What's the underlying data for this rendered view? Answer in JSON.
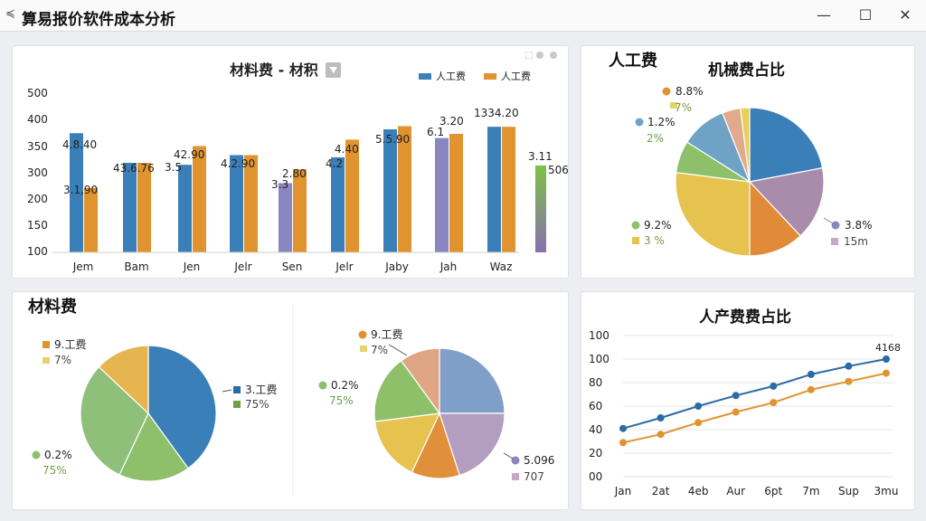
{
  "window": {
    "title": "算易报价软件成本分析",
    "menu_icon": "menu-icon",
    "minimize_icon": "minimize-icon",
    "maximize_icon": "maximize-icon",
    "close_icon": "close-icon"
  },
  "colors": {
    "blue": "#3a7fb8",
    "orange": "#e0932f",
    "purple": "#8a86c0",
    "green": "#8ebf6b",
    "pink": "#a98cab",
    "tan": "#e0a583",
    "yellow": "#e6c24e",
    "dkblue": "#2c6aa6",
    "gridline": "#e6e6e6"
  },
  "bar_panel": {
    "title": "材料费 - 材积",
    "filter_icon": "filter-icon",
    "tool_icons": [
      "select-icon",
      "gear-icon",
      "close-icon"
    ],
    "side_labels": [
      "3.11",
      "506"
    ]
  },
  "labor_panel": {
    "heading": "人工费",
    "pie_title": "机械费占比",
    "labels": [
      {
        "value": "8.8%",
        "sub": "7%"
      },
      {
        "value": "1.2%",
        "sub": "2%"
      },
      {
        "value": "9.2%",
        "sub": "3 %"
      },
      {
        "value": "3.8%",
        "sub": "15m"
      }
    ]
  },
  "material_panel": {
    "heading": "材料费",
    "left_labels": [
      {
        "value": "9.工费",
        "sub": "7%"
      },
      {
        "value": "3.工费",
        "sub": "75%"
      },
      {
        "value": "0.2%",
        "sub": "75%"
      }
    ],
    "right_labels": [
      {
        "value": "9.工费",
        "sub": "7%"
      },
      {
        "value": "0.2%",
        "sub": "75%"
      },
      {
        "value": "5.096",
        "sub": "707"
      }
    ]
  },
  "line_panel": {
    "title": "人产费费占比",
    "end_label": "4168"
  },
  "chart_data": [
    {
      "type": "bar",
      "title": "材料费 - 材积",
      "categories": [
        "Jem",
        "Bam",
        "Jen",
        "Jelr",
        "Sen",
        "Jelr",
        "Jaby",
        "Jah",
        "Waz"
      ],
      "ylim": [
        0,
        500
      ],
      "yticks": [
        "0",
        "100",
        "150",
        "200",
        "250",
        "300",
        "350",
        "400",
        "500"
      ],
      "legend_position": "top-right",
      "series": [
        {
          "name": "人工费",
          "values": [
            370,
            278,
            272,
            302,
            215,
            295,
            382,
            355,
            390
          ]
        },
        {
          "name": "人工费",
          "values": [
            200,
            278,
            330,
            302,
            258,
            350,
            392,
            368,
            390
          ]
        }
      ],
      "data_labels": [
        "4.8.40",
        "3.1,90",
        "43.6.76",
        "42.90",
        "3.5",
        "4.2.90",
        "3.3",
        "2.80",
        "4.2",
        "4.40",
        "5.5.90",
        "6.1",
        "3.20",
        "1334.20"
      ],
      "grid": false
    },
    {
      "type": "pie",
      "title": "机械费占比",
      "values": [
        22,
        16,
        12,
        27,
        7,
        10,
        4,
        2
      ]
    },
    {
      "type": "pie",
      "title": "材料费",
      "values": [
        40,
        17,
        30,
        13
      ]
    },
    {
      "type": "pie",
      "values": [
        25,
        20,
        12,
        16,
        17,
        10
      ]
    },
    {
      "type": "line",
      "title": "人产费费占比",
      "categories": [
        "Jan",
        "2at",
        "4eb",
        "Aur",
        "6pt",
        "7m",
        "Sup",
        "3mu"
      ],
      "ylim": [
        0,
        100
      ],
      "yticks": [
        "00",
        "20",
        "40",
        "60",
        "80",
        "100",
        "100"
      ],
      "series": [
        {
          "values": [
            41,
            50,
            60,
            69,
            77,
            87,
            94,
            100
          ]
        },
        {
          "values": [
            29,
            36,
            46,
            55,
            63,
            74,
            81,
            88
          ]
        }
      ],
      "grid": true
    }
  ]
}
